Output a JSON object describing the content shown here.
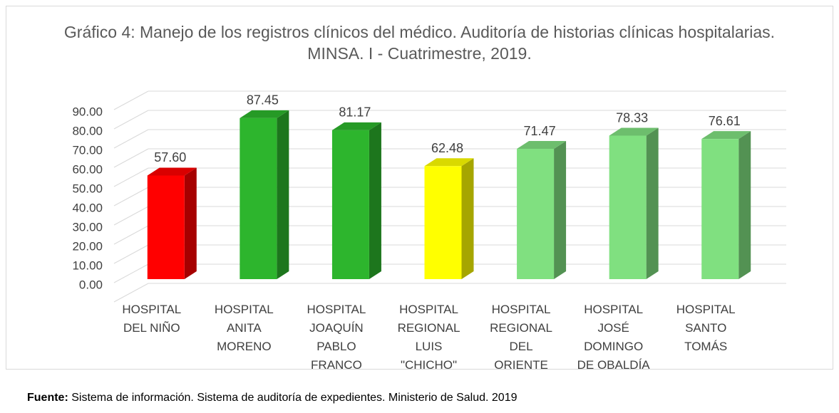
{
  "chart_data": {
    "type": "bar3d",
    "title": "Gráfico 4: Manejo de los registros clínicos del médico. Auditoría de historias clínicas hospitalarias. MINSA. I - Cuatrimestre, 2019.",
    "categories": [
      "HOSPITAL DEL NIÑO",
      "HOSPITAL ANITA MORENO",
      "HOSPITAL JOAQUÍN PABLO FRANCO",
      "HOSPITAL REGIONAL LUIS \"CHICHO\"",
      "HOSPITAL REGIONAL DEL ORIENTE",
      "HOSPITAL JOSÉ DOMINGO DE OBALDÍA",
      "HOSPITAL SANTO TOMÁS"
    ],
    "values": [
      57.6,
      87.45,
      81.17,
      62.48,
      71.47,
      78.33,
      76.61
    ],
    "value_labels": [
      "57.60",
      "87.45",
      "81.17",
      "62.48",
      "71.47",
      "78.33",
      "76.61"
    ],
    "colors": [
      "#ff0000",
      "#2db52d",
      "#2db52d",
      "#ffff00",
      "#80e080",
      "#80e080",
      "#80e080"
    ],
    "ylim": [
      0,
      100
    ],
    "yticks": [
      {
        "value": 0,
        "label": "0.00"
      },
      {
        "value": 10,
        "label": "10.00"
      },
      {
        "value": 20,
        "label": "20.00"
      },
      {
        "value": 30,
        "label": "30.00"
      },
      {
        "value": 40,
        "label": "40.00"
      },
      {
        "value": 50,
        "label": "50.00"
      },
      {
        "value": 60,
        "label": "60.00"
      },
      {
        "value": 70,
        "label": "70.00"
      },
      {
        "value": 80,
        "label": "80.00"
      },
      {
        "value": 90,
        "label": "90.00"
      }
    ],
    "grid": true,
    "source_label": "Fuente:",
    "source": "Sistema de información. Sistema de auditoría de expedientes. Ministerio de Salud. 2019"
  }
}
